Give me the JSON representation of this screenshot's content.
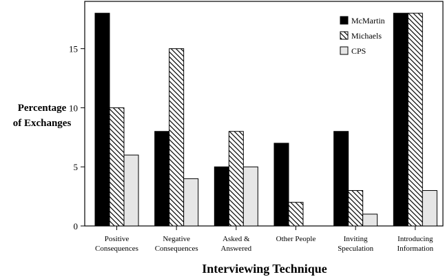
{
  "chart_data": {
    "type": "bar",
    "title": "",
    "ylabel_line1": "Percentage",
    "ylabel_line2": "of Exchanges",
    "xlabel": "Interviewing Technique",
    "ylim": [
      0,
      19
    ],
    "yticks": [
      0,
      5,
      10,
      15
    ],
    "grid": false,
    "legend_position": "top-right",
    "categories": [
      [
        "Positive",
        "Consequences"
      ],
      [
        "Negative",
        "Consequences"
      ],
      [
        "Asked &",
        "Answered"
      ],
      [
        "Other People"
      ],
      [
        "Inviting",
        "Speculation"
      ],
      [
        "Introducing",
        "Information"
      ]
    ],
    "series": [
      {
        "name": "McMartin",
        "fill": "black",
        "values": [
          18,
          8,
          5,
          7,
          8,
          18
        ]
      },
      {
        "name": "Michaels",
        "fill": "hatch",
        "values": [
          10,
          15,
          8,
          2,
          3,
          18
        ]
      },
      {
        "name": "CPS",
        "fill": "light",
        "values": [
          6,
          4,
          5,
          0,
          1,
          3
        ]
      }
    ],
    "colors": {
      "black": "#000000",
      "light": "#e6e6e6",
      "hatch_fg": "#000000",
      "hatch_bg": "#ffffff"
    }
  }
}
